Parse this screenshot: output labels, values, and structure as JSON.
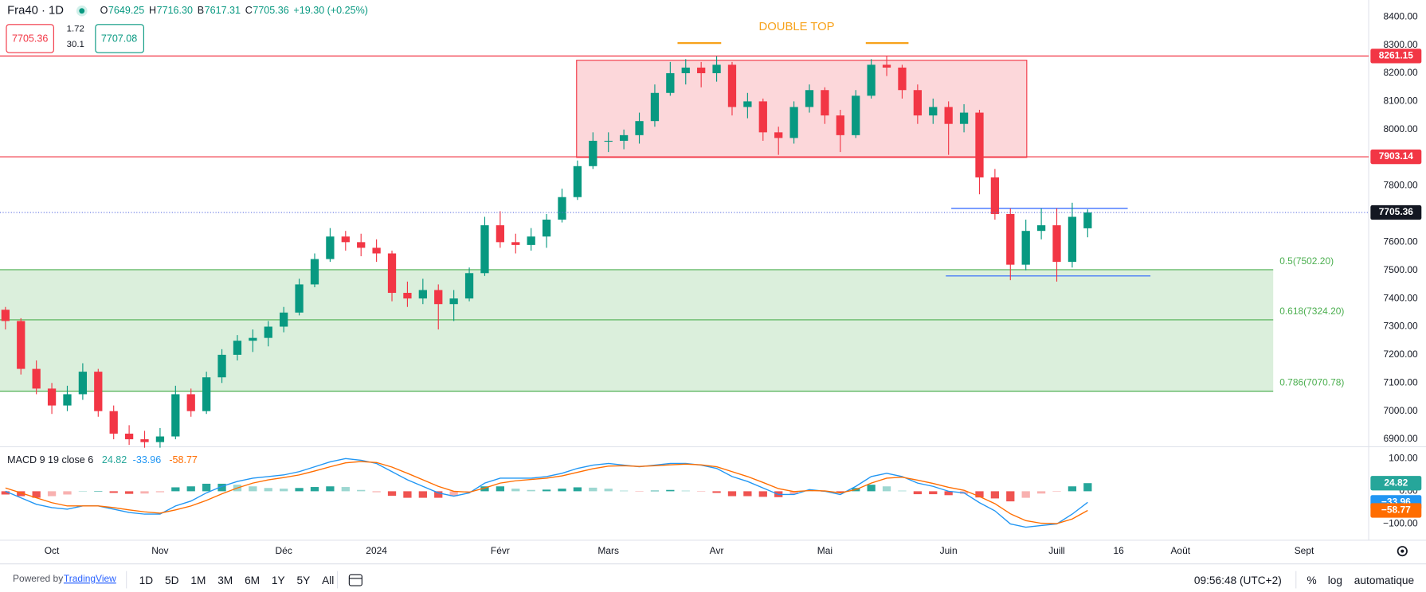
{
  "header": {
    "symbol": "Fra40 · 1D",
    "ohlc": [
      {
        "key": "O",
        "value": "7649.25"
      },
      {
        "key": "H",
        "value": "7716.30"
      },
      {
        "key": "B",
        "value": "7617.31"
      },
      {
        "key": "C",
        "value": "7705.36"
      }
    ],
    "change": "+19.30 (+0.25%)",
    "sell": "7705.36",
    "spread_top": "1.72",
    "spread_bottom": "30.1",
    "buy": "7707.08"
  },
  "chart_data": [
    {
      "type": "candlestick",
      "up_color": "#089981",
      "down_color": "#f23645",
      "categories": [
        null,
        null,
        null,
        "Oct",
        null,
        null,
        null,
        null,
        null,
        null,
        "Nov",
        null,
        null,
        null,
        null,
        null,
        null,
        null,
        "Déc",
        null,
        null,
        null,
        null,
        null,
        "2024",
        null,
        null,
        null,
        null,
        null,
        null,
        null,
        "Févr",
        null,
        null,
        null,
        null,
        null,
        null,
        "Mars",
        null,
        null,
        null,
        null,
        null,
        null,
        "Avr",
        null,
        null,
        null,
        null,
        null,
        null,
        "Mai",
        null,
        null,
        null,
        null,
        null,
        null,
        null,
        "Juin",
        null,
        null,
        null,
        null,
        null,
        null,
        "Juill",
        null,
        null,
        null,
        "16",
        null,
        null,
        null,
        "Août",
        null,
        null,
        null,
        null,
        null,
        null,
        null,
        "Sept"
      ],
      "candles": [
        [
          7360,
          7370,
          7290,
          7320
        ],
        [
          7320,
          7330,
          7130,
          7150
        ],
        [
          7150,
          7180,
          7060,
          7080
        ],
        [
          7080,
          7100,
          6990,
          7020
        ],
        [
          7020,
          7090,
          7000,
          7060
        ],
        [
          7060,
          7170,
          7040,
          7140
        ],
        [
          7140,
          7150,
          6980,
          7000
        ],
        [
          7000,
          7020,
          6900,
          6920
        ],
        [
          6920,
          6950,
          6880,
          6900
        ],
        [
          6900,
          6930,
          6870,
          6890
        ],
        [
          6890,
          6940,
          6870,
          6910
        ],
        [
          6910,
          7090,
          6900,
          7060
        ],
        [
          7060,
          7080,
          6980,
          7000
        ],
        [
          7000,
          7140,
          6990,
          7120
        ],
        [
          7120,
          7220,
          7100,
          7200
        ],
        [
          7200,
          7270,
          7180,
          7250
        ],
        [
          7250,
          7290,
          7210,
          7260
        ],
        [
          7260,
          7320,
          7230,
          7300
        ],
        [
          7300,
          7370,
          7280,
          7350
        ],
        [
          7350,
          7470,
          7340,
          7450
        ],
        [
          7450,
          7560,
          7440,
          7540
        ],
        [
          7540,
          7650,
          7530,
          7620
        ],
        [
          7620,
          7640,
          7570,
          7600
        ],
        [
          7600,
          7630,
          7550,
          7580
        ],
        [
          7580,
          7610,
          7530,
          7560
        ],
        [
          7560,
          7570,
          7390,
          7420
        ],
        [
          7420,
          7460,
          7370,
          7400
        ],
        [
          7400,
          7470,
          7380,
          7430
        ],
        [
          7430,
          7450,
          7290,
          7380
        ],
        [
          7380,
          7430,
          7320,
          7400
        ],
        [
          7400,
          7510,
          7390,
          7490
        ],
        [
          7490,
          7690,
          7480,
          7660
        ],
        [
          7660,
          7710,
          7580,
          7600
        ],
        [
          7600,
          7630,
          7560,
          7590
        ],
        [
          7590,
          7650,
          7570,
          7620
        ],
        [
          7620,
          7700,
          7580,
          7680
        ],
        [
          7680,
          7790,
          7670,
          7760
        ],
        [
          7760,
          7890,
          7750,
          7870
        ],
        [
          7870,
          7990,
          7860,
          7960
        ],
        [
          7960,
          7990,
          7920,
          7960
        ],
        [
          7960,
          8000,
          7930,
          7980
        ],
        [
          7980,
          8060,
          7950,
          8030
        ],
        [
          8030,
          8160,
          8010,
          8130
        ],
        [
          8130,
          8240,
          8120,
          8200
        ],
        [
          8200,
          8250,
          8160,
          8220
        ],
        [
          8220,
          8240,
          8150,
          8200
        ],
        [
          8200,
          8260,
          8170,
          8230
        ],
        [
          8230,
          8240,
          8050,
          8080
        ],
        [
          8080,
          8130,
          8040,
          8100
        ],
        [
          8100,
          8110,
          7960,
          7990
        ],
        [
          7990,
          8010,
          7910,
          7970
        ],
        [
          7970,
          8100,
          7950,
          8080
        ],
        [
          8080,
          8160,
          8060,
          8140
        ],
        [
          8140,
          8150,
          8020,
          8050
        ],
        [
          8050,
          8070,
          7920,
          7980
        ],
        [
          7980,
          8140,
          7970,
          8120
        ],
        [
          8120,
          8250,
          8110,
          8230
        ],
        [
          8230,
          8260,
          8190,
          8220
        ],
        [
          8220,
          8230,
          8110,
          8140
        ],
        [
          8140,
          8160,
          8020,
          8050
        ],
        [
          8050,
          8110,
          8020,
          8080
        ],
        [
          8080,
          8100,
          7910,
          8020
        ],
        [
          8020,
          8090,
          7990,
          8060
        ],
        [
          8060,
          8070,
          7770,
          7830
        ],
        [
          7830,
          7860,
          7680,
          7700
        ],
        [
          7700,
          7720,
          7465,
          7520
        ],
        [
          7520,
          7680,
          7500,
          7640
        ],
        [
          7640,
          7720,
          7610,
          7660
        ],
        [
          7660,
          7720,
          7460,
          7530
        ],
        [
          7530,
          7740,
          7510,
          7690
        ],
        [
          7649.25,
          7716.3,
          7617.31,
          7705.36
        ],
        null,
        null,
        null,
        null,
        null,
        null,
        null,
        null,
        null,
        null,
        null,
        null,
        null,
        null
      ],
      "ylim": [
        6880,
        8460
      ],
      "yticks": [
        {
          "value": 8400,
          "label": "8400.00"
        },
        {
          "value": 8300,
          "label": "8300.00"
        },
        {
          "value": 8200,
          "label": "8200.00"
        },
        {
          "value": 8100,
          "label": "8100.00"
        },
        {
          "value": 8000,
          "label": "8000.00"
        },
        {
          "value": 7900,
          "label": "7900.00"
        },
        {
          "value": 7800,
          "label": "7800.00"
        },
        {
          "value": 7700,
          "label": "7700.00"
        },
        {
          "value": 7600,
          "label": "7600.00"
        },
        {
          "value": 7500,
          "label": "7500.00"
        },
        {
          "value": 7400,
          "label": "7400.00"
        },
        {
          "value": 7300,
          "label": "7300.00"
        },
        {
          "value": 7200,
          "label": "7200.00"
        },
        {
          "value": 7100,
          "label": "7100.00"
        },
        {
          "value": 7000,
          "label": "7000.00"
        },
        {
          "value": 6900,
          "label": "6900.00"
        }
      ],
      "hlines": [
        {
          "value": 8261.15,
          "color": "#f23645"
        },
        {
          "value": 7903.14,
          "color": "#f23645"
        }
      ],
      "last_price_color": "#5b6ee1",
      "rectangle": {
        "range": [
          7901,
          8246
        ],
        "color": "#f23645"
      },
      "annotation": {
        "text": "DOUBLE TOP",
        "level": 8307,
        "color": "#f7a21b"
      },
      "fib_color": "#4caf50",
      "fib_levels": [
        {
          "value": 7502.2,
          "label": "0.5(7502.20)"
        },
        {
          "value": 7324.2,
          "label": "0.618(7324.20)"
        },
        {
          "value": 7070.78,
          "label": "0.786(7070.78)"
        }
      ],
      "support_lines": {
        "values": [
          7720,
          7480
        ],
        "color": "#2962ff"
      }
    },
    {
      "type": "macd",
      "title": "MACD 9 19 close 6",
      "ylim": [
        -150,
        128
      ],
      "yticks": [
        {
          "value": 100,
          "label": "100.00"
        },
        {
          "value": 0,
          "label": "0.00"
        },
        {
          "value": -100,
          "label": "−100.00"
        }
      ],
      "histogram": {
        "up_color": "#26a69a",
        "down_color": "#ef5350",
        "value_label": "24.82",
        "values": [
          -10,
          -15,
          -20,
          -15,
          -10,
          0,
          0,
          -5,
          -8,
          -7,
          -3,
          12,
          15,
          23,
          23,
          20,
          15,
          10,
          8,
          10,
          13,
          15,
          13,
          4,
          -3,
          -14,
          -20,
          -20,
          -20,
          -15,
          -2,
          15,
          15,
          8,
          4,
          5,
          8,
          12,
          11,
          8,
          2,
          -1,
          2,
          4,
          2,
          -1,
          -5,
          -15,
          -15,
          -17,
          -18,
          -9,
          3,
          -1,
          -5,
          10,
          20,
          15,
          2,
          -9,
          -9,
          -12,
          -8,
          -19,
          -22,
          -31,
          -20,
          -7,
          -1,
          15,
          24.82,
          null,
          null,
          null,
          null,
          null,
          null,
          null,
          null,
          null,
          null,
          null,
          null,
          null,
          null
        ]
      },
      "series": [
        {
          "name": "MACD",
          "color": "#2196f3",
          "value_label": "−33.96",
          "values": [
            0,
            -20,
            -40,
            -50,
            -55,
            -45,
            -45,
            -55,
            -65,
            -70,
            -70,
            -45,
            -30,
            -5,
            15,
            30,
            40,
            45,
            50,
            60,
            75,
            90,
            100,
            95,
            85,
            60,
            35,
            15,
            -5,
            -15,
            -5,
            25,
            40,
            40,
            40,
            45,
            55,
            70,
            80,
            85,
            80,
            75,
            80,
            85,
            85,
            80,
            70,
            45,
            30,
            10,
            -10,
            -10,
            5,
            0,
            -10,
            15,
            45,
            55,
            45,
            25,
            15,
            0,
            -5,
            -35,
            -60,
            -100,
            -110,
            -105,
            -100,
            -70,
            -33.96,
            null,
            null,
            null,
            null,
            null,
            null,
            null,
            null,
            null,
            null,
            null,
            null,
            null,
            null
          ]
        },
        {
          "name": "Signal",
          "color": "#ff6d00",
          "value_label": "−58.77",
          "values": [
            10,
            -5,
            -20,
            -35,
            -45,
            -45,
            -45,
            -50,
            -57,
            -63,
            -67,
            -57,
            -45,
            -28,
            -8,
            10,
            25,
            35,
            42,
            50,
            62,
            75,
            87,
            91,
            88,
            74,
            55,
            35,
            15,
            0,
            -3,
            10,
            25,
            32,
            36,
            40,
            47,
            58,
            69,
            77,
            78,
            76,
            78,
            81,
            83,
            81,
            75,
            60,
            45,
            27,
            8,
            -1,
            2,
            1,
            -5,
            5,
            25,
            40,
            43,
            34,
            24,
            12,
            3,
            -16,
            -38,
            -69,
            -90,
            -98,
            -99,
            -85,
            -58.77,
            null,
            null,
            null,
            null,
            null,
            null,
            null,
            null,
            null,
            null,
            null,
            null,
            null,
            null
          ]
        }
      ]
    }
  ],
  "toolbar": {
    "powered": "Powered by",
    "brand": "TradingView",
    "intervals": [
      "1D",
      "5D",
      "1M",
      "3M",
      "6M",
      "1Y",
      "5Y",
      "All"
    ],
    "clock": "09:56:48 (UTC+2)",
    "percent": "%",
    "log": "log",
    "auto": "automatique"
  }
}
